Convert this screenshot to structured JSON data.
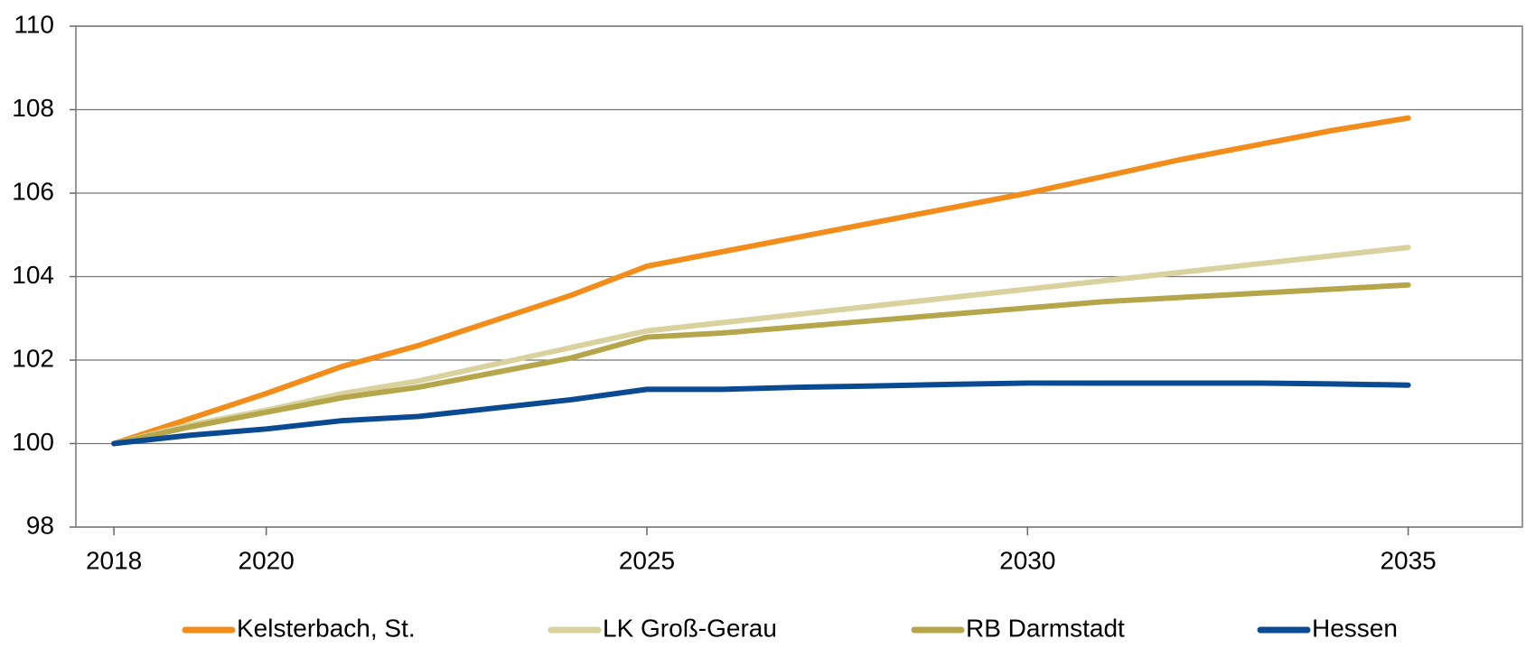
{
  "chart_data": {
    "type": "line",
    "x": [
      2018,
      2019,
      2020,
      2021,
      2022,
      2023,
      2024,
      2025,
      2026,
      2027,
      2028,
      2029,
      2030,
      2031,
      2032,
      2033,
      2034,
      2035
    ],
    "xlim": [
      2017.5,
      2036.5
    ],
    "xticks": [
      2018,
      2020,
      2025,
      2030,
      2035
    ],
    "ylim": [
      98,
      110
    ],
    "yticks": [
      98,
      100,
      102,
      104,
      106,
      108,
      110
    ],
    "grid": true,
    "legend": "bottom",
    "series": [
      {
        "name": "Kelsterbach, St.",
        "color": "#f28c1a",
        "values": [
          100,
          100.6,
          101.2,
          101.85,
          102.35,
          102.95,
          103.55,
          104.25,
          104.6,
          104.95,
          105.3,
          105.65,
          106.0,
          106.4,
          106.8,
          107.15,
          107.5,
          107.8
        ]
      },
      {
        "name": "LK Groß-Gerau",
        "color": "#d9d29e",
        "values": [
          100,
          100.45,
          100.8,
          101.2,
          101.5,
          101.9,
          102.3,
          102.7,
          102.9,
          103.1,
          103.3,
          103.5,
          103.7,
          103.9,
          104.1,
          104.3,
          104.5,
          104.7
        ]
      },
      {
        "name": "RB Darmstadt",
        "color": "#b5a64c",
        "values": [
          100,
          100.4,
          100.75,
          101.1,
          101.35,
          101.7,
          102.05,
          102.55,
          102.65,
          102.8,
          102.95,
          103.1,
          103.25,
          103.4,
          103.5,
          103.6,
          103.7,
          103.8
        ]
      },
      {
        "name": "Hessen",
        "color": "#0a4a93",
        "values": [
          100,
          100.2,
          100.35,
          100.55,
          100.65,
          100.85,
          101.05,
          101.3,
          101.3,
          101.35,
          101.38,
          101.42,
          101.45,
          101.45,
          101.45,
          101.45,
          101.43,
          101.4
        ]
      }
    ]
  }
}
